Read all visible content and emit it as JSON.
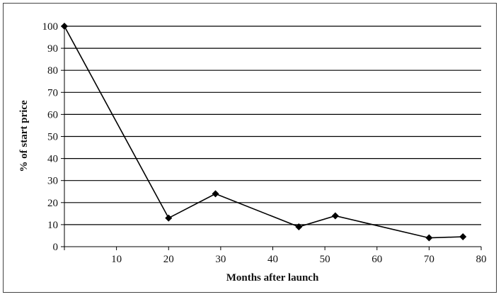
{
  "chart_data": {
    "type": "line",
    "title": "",
    "xlabel": "Months after launch",
    "ylabel": "% of start price",
    "xlim": [
      0,
      80
    ],
    "ylim": [
      0,
      100
    ],
    "x_ticks": [
      10,
      20,
      30,
      40,
      50,
      60,
      70,
      80
    ],
    "y_ticks": [
      0,
      10,
      20,
      30,
      40,
      50,
      60,
      70,
      80,
      90,
      100
    ],
    "grid": "horizontal",
    "legend": "none",
    "series": [
      {
        "marker": "diamond",
        "color": "#000000",
        "points": [
          {
            "x": 0,
            "y": 100
          },
          {
            "x": 20,
            "y": 13
          },
          {
            "x": 29,
            "y": 24
          },
          {
            "x": 45,
            "y": 9
          },
          {
            "x": 52,
            "y": 14
          },
          {
            "x": 70,
            "y": 4
          },
          {
            "x": 76.5,
            "y": 4.5
          }
        ]
      }
    ]
  }
}
